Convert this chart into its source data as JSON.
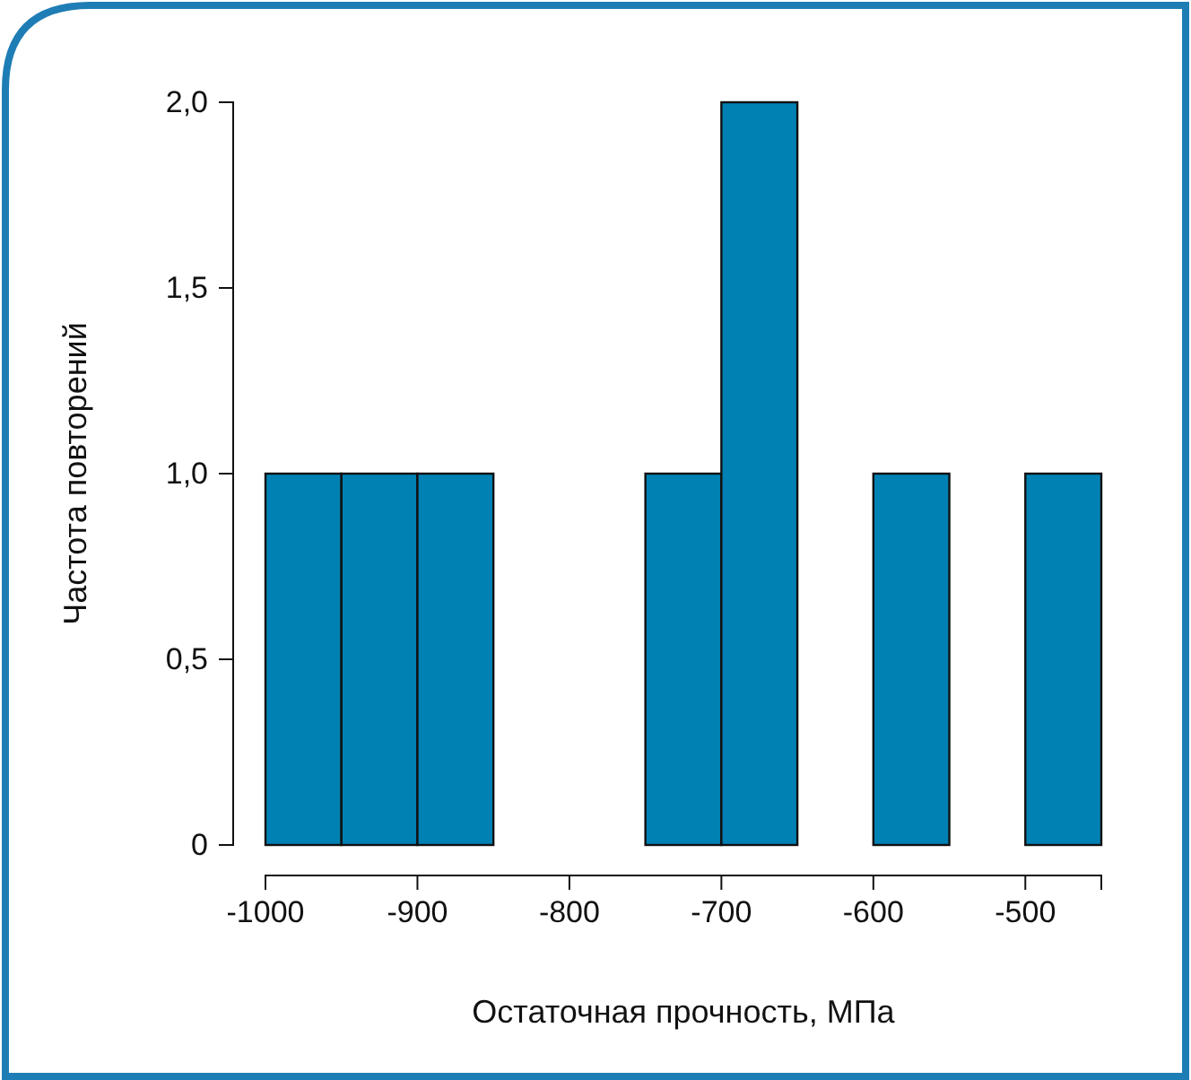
{
  "chart_data": {
    "type": "histogram",
    "xlabel": "Остаточная прочность, МПа",
    "ylabel": "Частота повторений",
    "bins": [
      -1000,
      -950,
      -900,
      -850,
      -800,
      -750,
      -700,
      -650,
      -600,
      -550,
      -500,
      -450
    ],
    "values": [
      1,
      1,
      1,
      0,
      0,
      1,
      2,
      0,
      1,
      0,
      1
    ],
    "color": "#0081b4",
    "xlim": [
      -1000,
      -450
    ],
    "xticks": [
      -1000,
      -900,
      -800,
      -700,
      -600,
      -500
    ],
    "ylim": [
      0,
      2
    ],
    "yticks": [
      0,
      {
        "value": 0.5,
        "label": "0,5"
      },
      {
        "value": 1,
        "label": "1,0"
      },
      {
        "value": 1.5,
        "label": "1,5"
      },
      {
        "value": 2,
        "label": "2,0"
      }
    ],
    "grid": false
  }
}
